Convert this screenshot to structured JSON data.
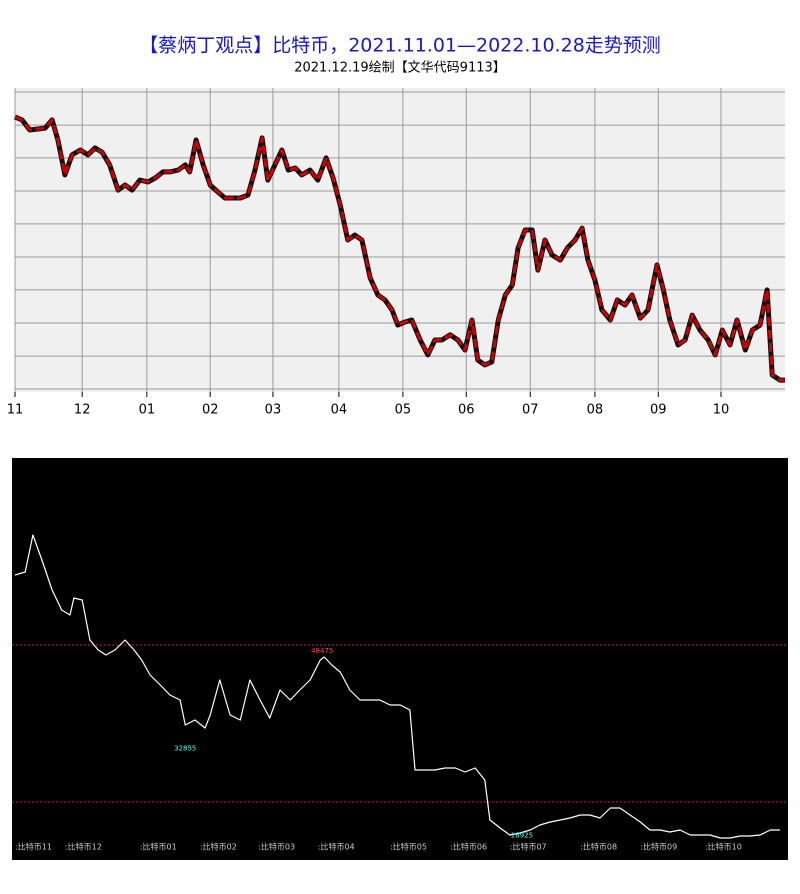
{
  "chart_data": [
    {
      "type": "line",
      "title": "【蔡炳丁观点】比特币，2021.11.01—2022.10.28走势预测",
      "subtitle": "2021.12.19绘制【文华代码9113】",
      "x": [
        0,
        0.11,
        0.23,
        0.47,
        0.58,
        0.67,
        0.78,
        0.89,
        1.02,
        1.14,
        1.25,
        1.36,
        1.48,
        1.61,
        1.72,
        1.83,
        1.95,
        2.08,
        2.19,
        2.31,
        2.42,
        2.55,
        2.66,
        2.73,
        2.83,
        2.94,
        3.05,
        3.17,
        3.28,
        3.39,
        3.52,
        3.64,
        3.75,
        3.86,
        3.95,
        4.06,
        4.17,
        4.27,
        4.38,
        4.48,
        4.61,
        4.73,
        4.86,
        4.97,
        5.08,
        5.2,
        5.31,
        5.42,
        5.55,
        5.67,
        5.78,
        5.89,
        5.98,
        6.09,
        6.2,
        6.33,
        6.45,
        6.56,
        6.67,
        6.8,
        6.92,
        7.03,
        7.14,
        7.23,
        7.34,
        7.45,
        7.55,
        7.66,
        7.77,
        7.86,
        7.97,
        8.08,
        8.17,
        8.28,
        8.39,
        8.52,
        8.63,
        8.75,
        8.86,
        8.95,
        9.06,
        9.17,
        9.3,
        9.41,
        9.53,
        9.64,
        9.77,
        9.89,
        10.03,
        10.13,
        10.23,
        10.36,
        10.47,
        10.58,
        10.7,
        10.83,
        10.94,
        11.05,
        11.17,
        11.28,
        11.41,
        11.52,
        11.64,
        11.75,
        11.83,
        11.95,
        12.03
      ],
      "values": [
        90.5,
        89.5,
        86.2,
        86.8,
        89.5,
        82.9,
        71.4,
        78,
        79.6,
        78,
        80.3,
        78.9,
        74.7,
        66.4,
        68.1,
        66.4,
        69.7,
        69.1,
        70.4,
        72.4,
        72.4,
        73,
        74.7,
        72.4,
        82.9,
        74.7,
        68.1,
        65.8,
        63.8,
        63.8,
        63.8,
        64.8,
        73,
        83.6,
        69.7,
        74.7,
        79.6,
        73,
        73.7,
        71.4,
        73,
        69.7,
        77,
        70.4,
        61.5,
        50,
        51.6,
        50,
        37.5,
        31.9,
        30.3,
        27,
        22,
        23,
        23.7,
        17.1,
        12.2,
        17.1,
        17.1,
        18.8,
        17.1,
        13.8,
        23.7,
        10.5,
        8.9,
        9.9,
        23.7,
        31.9,
        35.2,
        47.4,
        53.3,
        53.3,
        40.1,
        50,
        45.1,
        43.4,
        47.4,
        50,
        53.9,
        43.4,
        36.8,
        27,
        23.7,
        30.3,
        28.6,
        31.9,
        24.3,
        27,
        41.8,
        33.6,
        23.7,
        15.5,
        17.1,
        25.3,
        20.4,
        17.1,
        12.2,
        20.4,
        15.5,
        23.7,
        13.8,
        20.4,
        22,
        33.6,
        5.6,
        3.9,
        3.9
      ],
      "color": "#cc0000",
      "xlim": [
        0,
        12.03
      ],
      "xticks": [
        {
          "value": 0,
          "label": "11"
        },
        {
          "value": 1.05,
          "label": "12"
        },
        {
          "value": 2.06,
          "label": "01"
        },
        {
          "value": 3.05,
          "label": "02"
        },
        {
          "value": 4.03,
          "label": "03"
        },
        {
          "value": 5.06,
          "label": "04"
        },
        {
          "value": 6.06,
          "label": "05"
        },
        {
          "value": 7.05,
          "label": "06"
        },
        {
          "value": 8.05,
          "label": "07"
        },
        {
          "value": 9.06,
          "label": "08"
        },
        {
          "value": 10.05,
          "label": "09"
        },
        {
          "value": 11.03,
          "label": "10"
        }
      ],
      "ylim": [
        0,
        100
      ],
      "yticks": [
        98.7,
        87.8,
        77,
        66.1,
        55.3,
        44.4,
        33.6,
        22.7,
        11.8,
        1
      ],
      "grid": true
    },
    {
      "type": "line",
      "x": [
        0,
        0.16,
        0.28,
        0.42,
        0.58,
        0.73,
        0.86,
        0.92,
        1.05,
        1.17,
        1.3,
        1.42,
        1.56,
        1.72,
        1.86,
        1.98,
        2.11,
        2.27,
        2.42,
        2.58,
        2.66,
        2.81,
        2.97,
        3.05,
        3.2,
        3.36,
        3.52,
        3.67,
        3.83,
        3.98,
        4.14,
        4.3,
        4.45,
        4.61,
        4.77,
        4.83,
        4.95,
        5.08,
        5.23,
        5.39,
        5.55,
        5.7,
        5.86,
        6.02,
        6.17,
        6.25,
        6.41,
        6.56,
        6.72,
        6.88,
        7.03,
        7.19,
        7.34,
        7.42,
        7.58,
        7.73,
        7.89,
        8.05,
        8.2,
        8.36,
        8.52,
        8.67,
        8.83,
        8.98,
        9.14,
        9.3,
        9.45,
        9.61,
        9.77,
        9.92,
        10.08,
        10.23,
        10.39,
        10.55,
        10.7,
        10.86,
        11.02,
        11.17,
        11.33,
        11.48,
        11.64,
        11.8,
        11.95
      ],
      "values": [
        61275,
        61755,
        67675,
        63675,
        58875,
        55675,
        54875,
        57595,
        57275,
        50875,
        49275,
        48475,
        49275,
        50875,
        49275,
        47675,
        45275,
        43675,
        42075,
        41275,
        37275,
        38075,
        36795,
        38875,
        44475,
        38875,
        38075,
        44475,
        41275,
        38395,
        42875,
        41275,
        42875,
        44475,
        47675,
        48155,
        46875,
        45755,
        42875,
        41275,
        41275,
        41275,
        40475,
        40475,
        39675,
        30075,
        30075,
        30075,
        30395,
        30395,
        29755,
        30395,
        28475,
        22075,
        20795,
        19675,
        19995,
        20475,
        21275,
        21755,
        22075,
        22395,
        22875,
        22875,
        22395,
        23995,
        23995,
        22875,
        21755,
        20475,
        20475,
        20155,
        20475,
        19675,
        19675,
        19675,
        19195,
        19195,
        19515,
        19515,
        19675,
        20475,
        20475
      ],
      "color": "#ffffff",
      "background": "#000000",
      "xlim": [
        0,
        12.03
      ],
      "xticks": [
        {
          "value": 0,
          "label": ":比特币11"
        },
        {
          "value": 0.78,
          "label": ":比特币12"
        },
        {
          "value": 1.95,
          "label": ":比特币01"
        },
        {
          "value": 2.89,
          "label": ":比特币02"
        },
        {
          "value": 3.8,
          "label": ":比特币03"
        },
        {
          "value": 4.73,
          "label": ":比特币04"
        },
        {
          "value": 5.86,
          "label": ":比特币05"
        },
        {
          "value": 6.8,
          "label": ":比特币06"
        },
        {
          "value": 7.73,
          "label": ":比特币07"
        },
        {
          "value": 8.83,
          "label": ":比特币08"
        },
        {
          "value": 9.77,
          "label": ":比特币09"
        },
        {
          "value": 10.78,
          "label": ":比特币10"
        }
      ],
      "ylim": [
        16475,
        79675
      ],
      "reference_lines": {
        "values": [
          50075,
          24955
        ],
        "color": "#cc2222"
      },
      "annotations": [
        {
          "x": 4.8,
          "value": 48475,
          "color": "#ff4444"
        },
        {
          "x": 2.66,
          "value": 32855,
          "color": "#55ffff"
        },
        {
          "x": 7.92,
          "value": 18925,
          "color": "#55ffff"
        }
      ]
    }
  ]
}
